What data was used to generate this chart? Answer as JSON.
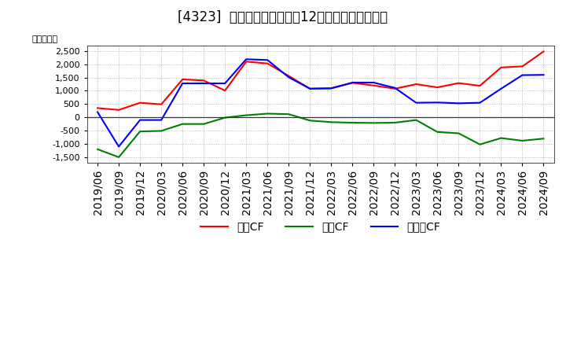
{
  "title": "[4323]  キャッシュフローの12か月移動合計の推移",
  "ylabel": "（百万円）",
  "dates": [
    "2019/06",
    "2019/09",
    "2019/12",
    "2020/03",
    "2020/06",
    "2020/09",
    "2020/12",
    "2021/03",
    "2021/06",
    "2021/09",
    "2021/12",
    "2022/03",
    "2022/06",
    "2022/09",
    "2022/12",
    "2023/03",
    "2023/06",
    "2023/09",
    "2023/12",
    "2024/03",
    "2024/06",
    "2024/09"
  ],
  "営業CF": [
    350,
    280,
    550,
    490,
    1430,
    1390,
    1010,
    2100,
    2030,
    1560,
    1080,
    1100,
    1300,
    1200,
    1080,
    1250,
    1130,
    1290,
    1190,
    1880,
    1920,
    2480
  ],
  "投資CF": [
    -1200,
    -1500,
    -530,
    -510,
    -250,
    -250,
    -10,
    80,
    140,
    120,
    -120,
    -180,
    -200,
    -210,
    -200,
    -100,
    -550,
    -600,
    -1020,
    -780,
    -880,
    -800
  ],
  "フリーCF": [
    200,
    -1100,
    -100,
    -100,
    1280,
    1280,
    1280,
    2190,
    2160,
    1510,
    1080,
    1090,
    1310,
    1310,
    1110,
    550,
    560,
    530,
    550,
    1080,
    1590,
    1600
  ],
  "line_colors": {
    "営業CF": "#ff0000",
    "投資CF": "#008000",
    "フリーCF": "#0000ff"
  },
  "legend_labels": [
    "営業CF",
    "投資CF",
    "フリーCF"
  ],
  "ylim": [
    -1700,
    2700
  ],
  "yticks": [
    -1500,
    -1000,
    -500,
    0,
    500,
    1000,
    1500,
    2000,
    2500
  ],
  "background_color": "#ffffff",
  "plot_bg_color": "#ffffff",
  "grid_color": "#aaaaaa",
  "title_fontsize": 12,
  "axis_fontsize": 8,
  "legend_fontsize": 10
}
